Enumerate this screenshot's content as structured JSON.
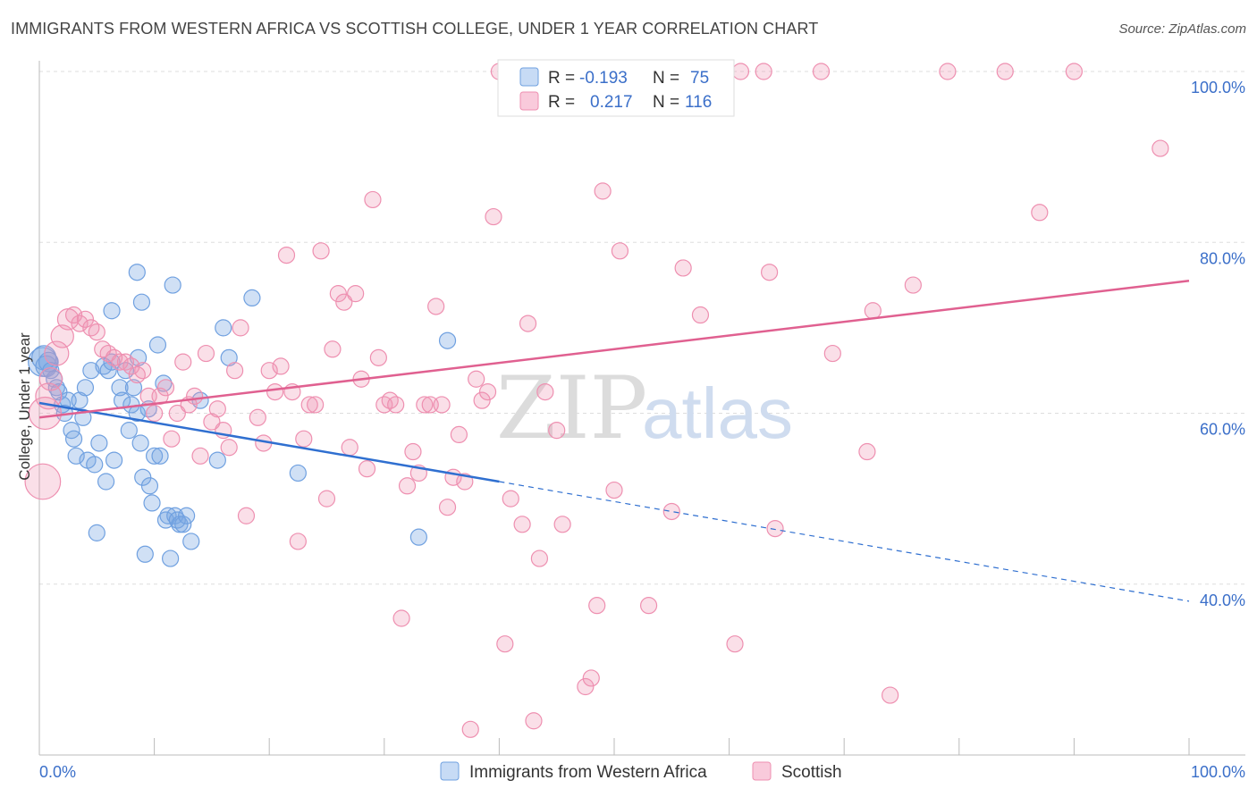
{
  "title": "IMMIGRANTS FROM WESTERN AFRICA VS SCOTTISH COLLEGE, UNDER 1 YEAR CORRELATION CHART",
  "source": "Source: ZipAtlas.com",
  "watermark": {
    "zip": "ZIP",
    "atlas": "atlas"
  },
  "colors": {
    "blue": "#6fa0e0",
    "pink": "#ee8fb0",
    "blue_line": "#2f6fd0",
    "pink_line": "#e06090",
    "tick": "#3b6fc9"
  },
  "legend": {
    "rows": [
      {
        "r_label": "R =",
        "r_value": "-0.193",
        "n_label": "N =",
        "n_value": "75"
      },
      {
        "r_label": "R =",
        "r_value": "0.217",
        "n_label": "N =",
        "n_value": "116"
      }
    ]
  },
  "bottom_legend": [
    "Immigrants from Western Africa",
    "Scottish"
  ],
  "chart_data": {
    "type": "scatter",
    "title": "IMMIGRANTS FROM WESTERN AFRICA VS SCOTTISH COLLEGE, UNDER 1 YEAR CORRELATION CHART",
    "xlabel": "",
    "ylabel": "College, Under 1 year",
    "xlim": [
      0,
      100
    ],
    "ylim": [
      20,
      100
    ],
    "x_tick_labels": [
      "0.0%",
      "100.0%"
    ],
    "y_ticks": [
      40,
      60,
      80,
      100
    ],
    "y_tick_labels": [
      "40.0%",
      "60.0%",
      "80.0%",
      "100.0%"
    ],
    "grid": true,
    "legend_position": "top-center",
    "series": [
      {
        "name": "Immigrants from Western Africa",
        "color": "#6fa0e0",
        "trend": {
          "x0": 0,
          "y0": 61.2,
          "x1": 40,
          "y1": 52.0,
          "dashed_to_x": 100,
          "dashed_to_y": 38.0
        },
        "points": [
          [
            0.3,
            66,
            1.8
          ],
          [
            0.4,
            66.5,
            1.5
          ],
          [
            0.6,
            65.5,
            1.3
          ],
          [
            0.8,
            66,
            1.2
          ],
          [
            1.0,
            65,
            1.0
          ],
          [
            1.3,
            64,
            1.0
          ],
          [
            1.5,
            63,
            1.0
          ],
          [
            1.7,
            62.5,
            1.0
          ],
          [
            2.0,
            61,
            1.0
          ],
          [
            2.2,
            60,
            1.0
          ],
          [
            2.5,
            61.5,
            1.0
          ],
          [
            2.8,
            58,
            1.0
          ],
          [
            3.0,
            57,
            1.0
          ],
          [
            3.2,
            55,
            1.0
          ],
          [
            3.5,
            61.5,
            1.0
          ],
          [
            3.8,
            59.5,
            1.0
          ],
          [
            4.0,
            63,
            1.0
          ],
          [
            4.2,
            54.5,
            1.0
          ],
          [
            4.5,
            65,
            1.0
          ],
          [
            4.8,
            54,
            1.0
          ],
          [
            5.0,
            46,
            1.0
          ],
          [
            5.2,
            56.5,
            1.0
          ],
          [
            5.6,
            65.5,
            1.0
          ],
          [
            5.8,
            52,
            1.0
          ],
          [
            6.0,
            65,
            1.0
          ],
          [
            6.3,
            66,
            1.0
          ],
          [
            6.5,
            54.5,
            1.0
          ],
          [
            6.3,
            72,
            1.0
          ],
          [
            7.0,
            63,
            1.0
          ],
          [
            7.2,
            61.5,
            1.0
          ],
          [
            7.5,
            65,
            1.0
          ],
          [
            7.8,
            58,
            1.0
          ],
          [
            8.0,
            61,
            1.0
          ],
          [
            8.2,
            63,
            1.0
          ],
          [
            8.5,
            60,
            1.0
          ],
          [
            8.6,
            66.5,
            1.0
          ],
          [
            8.5,
            76.5,
            1.0
          ],
          [
            8.8,
            56.5,
            1.0
          ],
          [
            8.9,
            73,
            1.0
          ],
          [
            9.0,
            52.5,
            1.0
          ],
          [
            9.2,
            43.5,
            1.0
          ],
          [
            9.5,
            60.5,
            1.0
          ],
          [
            9.6,
            51.5,
            1.0
          ],
          [
            9.8,
            49.5,
            1.0
          ],
          [
            10.0,
            55,
            1.0
          ],
          [
            10.3,
            68,
            1.0
          ],
          [
            10.5,
            55,
            1.0
          ],
          [
            10.8,
            63.5,
            1.0
          ],
          [
            11.0,
            47.5,
            1.0
          ],
          [
            11.2,
            48,
            1.0
          ],
          [
            11.4,
            43,
            1.0
          ],
          [
            11.6,
            75,
            1.0
          ],
          [
            11.8,
            48,
            1.0
          ],
          [
            12.0,
            47.5,
            1.0
          ],
          [
            12.2,
            47,
            1.0
          ],
          [
            12.5,
            47,
            1.0
          ],
          [
            12.8,
            48,
            1.0
          ],
          [
            13.2,
            45,
            1.0
          ],
          [
            14.0,
            61.5,
            1.0
          ],
          [
            15.5,
            54.5,
            1.0
          ],
          [
            16.0,
            70,
            1.0
          ],
          [
            16.5,
            66.5,
            1.0
          ],
          [
            18.5,
            73.5,
            1.0
          ],
          [
            22.5,
            53,
            1.0
          ],
          [
            35.5,
            68.5,
            1.0
          ],
          [
            33.0,
            45.5,
            1.0
          ]
        ]
      },
      {
        "name": "Scottish",
        "color": "#ee8fb0",
        "trend": {
          "x0": 0,
          "y0": 59.5,
          "x1": 100,
          "y1": 75.5
        },
        "points": [
          [
            0.3,
            52,
            2.2
          ],
          [
            0.5,
            60,
            2.0
          ],
          [
            0.8,
            62,
            1.6
          ],
          [
            1.0,
            64,
            1.4
          ],
          [
            1.5,
            67,
            1.5
          ],
          [
            2.0,
            69,
            1.4
          ],
          [
            2.5,
            71,
            1.3
          ],
          [
            3.0,
            71.5,
            1.0
          ],
          [
            3.5,
            70.5,
            1.0
          ],
          [
            4.0,
            71,
            1.0
          ],
          [
            4.5,
            70,
            1.0
          ],
          [
            5.0,
            69.5,
            1.0
          ],
          [
            5.5,
            67.5,
            1.0
          ],
          [
            6.0,
            67,
            1.0
          ],
          [
            6.5,
            66.5,
            1.0
          ],
          [
            7.0,
            66,
            1.0
          ],
          [
            7.5,
            66,
            1.0
          ],
          [
            8.0,
            65.5,
            1.0
          ],
          [
            8.5,
            64.5,
            1.0
          ],
          [
            9.0,
            65,
            1.0
          ],
          [
            9.5,
            62,
            1.0
          ],
          [
            10.0,
            60,
            1.0
          ],
          [
            10.5,
            62,
            1.0
          ],
          [
            11.0,
            63,
            1.0
          ],
          [
            11.5,
            57,
            1.0
          ],
          [
            12.0,
            60,
            1.0
          ],
          [
            12.5,
            66,
            1.0
          ],
          [
            13.0,
            61,
            1.0
          ],
          [
            13.5,
            62,
            1.0
          ],
          [
            14.0,
            55,
            1.0
          ],
          [
            14.5,
            67,
            1.0
          ],
          [
            15.0,
            59,
            1.0
          ],
          [
            15.5,
            60.5,
            1.0
          ],
          [
            16.0,
            58,
            1.0
          ],
          [
            16.5,
            56,
            1.0
          ],
          [
            17.0,
            65,
            1.0
          ],
          [
            17.5,
            70,
            1.0
          ],
          [
            18.0,
            48,
            1.0
          ],
          [
            19.0,
            59.5,
            1.0
          ],
          [
            19.5,
            56.5,
            1.0
          ],
          [
            20.0,
            65,
            1.0
          ],
          [
            20.5,
            62.5,
            1.0
          ],
          [
            21.0,
            65.5,
            1.0
          ],
          [
            21.5,
            78.5,
            1.0
          ],
          [
            22.0,
            62.5,
            1.0
          ],
          [
            22.5,
            45,
            1.0
          ],
          [
            23.0,
            57,
            1.0
          ],
          [
            23.5,
            61,
            1.0
          ],
          [
            24.0,
            61,
            1.0
          ],
          [
            24.5,
            79,
            1.0
          ],
          [
            25.0,
            50,
            1.0
          ],
          [
            25.5,
            67.5,
            1.0
          ],
          [
            26.0,
            74,
            1.0
          ],
          [
            26.5,
            73,
            1.0
          ],
          [
            27.0,
            56,
            1.0
          ],
          [
            27.5,
            74,
            1.0
          ],
          [
            28.0,
            64,
            1.0
          ],
          [
            28.5,
            53.5,
            1.0
          ],
          [
            29.0,
            85,
            1.0
          ],
          [
            29.5,
            66.5,
            1.0
          ],
          [
            30.0,
            61,
            1.0
          ],
          [
            30.5,
            61.5,
            1.0
          ],
          [
            31.0,
            61,
            1.0
          ],
          [
            31.5,
            36,
            1.0
          ],
          [
            32.0,
            51.5,
            1.0
          ],
          [
            32.5,
            55.5,
            1.0
          ],
          [
            33.0,
            53,
            1.0
          ],
          [
            33.5,
            61,
            1.0
          ],
          [
            34.0,
            61,
            1.0
          ],
          [
            34.5,
            72.5,
            1.0
          ],
          [
            35.0,
            61,
            1.0
          ],
          [
            35.5,
            49,
            1.0
          ],
          [
            36.0,
            52.5,
            1.0
          ],
          [
            36.5,
            57.5,
            1.0
          ],
          [
            37.0,
            52,
            1.0
          ],
          [
            37.5,
            23,
            1.0
          ],
          [
            38.0,
            64,
            1.0
          ],
          [
            38.5,
            61.5,
            1.0
          ],
          [
            39.0,
            62.5,
            1.0
          ],
          [
            39.5,
            83,
            1.0
          ],
          [
            40.0,
            100,
            1.0
          ],
          [
            40.5,
            33,
            1.0
          ],
          [
            41.0,
            50,
            1.0
          ],
          [
            42.0,
            47,
            1.0
          ],
          [
            42.5,
            70.5,
            1.0
          ],
          [
            43.0,
            24,
            1.0
          ],
          [
            43.5,
            43,
            1.0
          ],
          [
            44.0,
            62.5,
            1.0
          ],
          [
            45.0,
            58,
            1.0
          ],
          [
            45.5,
            47,
            1.0
          ],
          [
            47.5,
            28,
            1.0
          ],
          [
            48.0,
            29,
            1.0
          ],
          [
            48.5,
            37.5,
            1.0
          ],
          [
            49.0,
            86,
            1.0
          ],
          [
            50.0,
            51,
            1.0
          ],
          [
            50.5,
            79,
            1.0
          ],
          [
            51.0,
            100,
            1.0
          ],
          [
            52.0,
            100,
            1.0
          ],
          [
            53.0,
            37.5,
            1.0
          ],
          [
            55.0,
            48.5,
            1.0
          ],
          [
            56.0,
            77,
            1.0
          ],
          [
            57.5,
            71.5,
            1.0
          ],
          [
            61.0,
            100,
            1.0
          ],
          [
            63.0,
            100,
            1.0
          ],
          [
            63.5,
            76.5,
            1.0
          ],
          [
            64.0,
            46.5,
            1.0
          ],
          [
            68.0,
            100,
            1.0
          ],
          [
            69.0,
            67,
            1.0
          ],
          [
            72.0,
            55.5,
            1.0
          ],
          [
            72.5,
            72,
            1.0
          ],
          [
            74.0,
            27,
            1.0
          ],
          [
            76.0,
            75,
            1.0
          ],
          [
            79.0,
            100,
            1.0
          ],
          [
            84.0,
            100,
            1.0
          ],
          [
            87.0,
            83.5,
            1.0
          ],
          [
            90.0,
            100,
            1.0
          ],
          [
            97.5,
            91,
            1.0
          ],
          [
            60.5,
            33,
            1.0
          ]
        ]
      }
    ]
  }
}
